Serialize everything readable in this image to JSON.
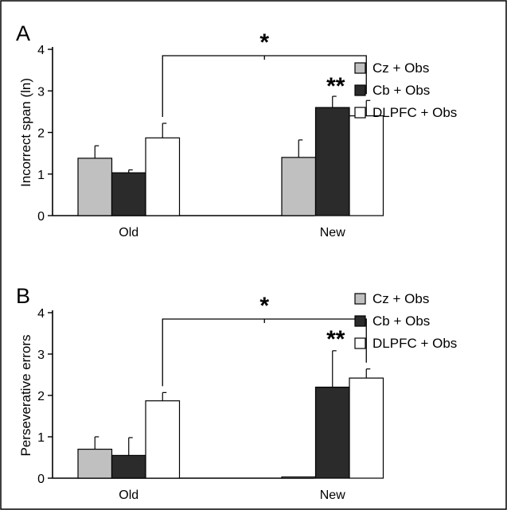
{
  "colors": {
    "Cz + Obs": "#c0c0c0",
    "Cb + Obs": "#2b2b2b",
    "DLPFC + Obs": "#ffffff"
  },
  "chart_data": [
    {
      "type": "bar",
      "panel_label": "A",
      "ylabel": "Incorrect span (ln)",
      "ylim": [
        0,
        4
      ],
      "yticks": [
        "0",
        "1",
        "2",
        "3",
        "4"
      ],
      "categories": [
        "Old",
        "New"
      ],
      "series": [
        {
          "name": "Cz + Obs",
          "values": [
            1.38,
            1.4
          ],
          "errors": [
            0.3,
            0.42
          ]
        },
        {
          "name": "Cb + Obs",
          "values": [
            1.03,
            2.6
          ],
          "errors": [
            0.07,
            0.27
          ]
        },
        {
          "name": "DLPFC + Obs",
          "values": [
            1.87,
            2.4
          ],
          "errors": [
            0.35,
            0.37
          ]
        }
      ],
      "legend_position": "right",
      "annotations": {
        "bracket_star": "*",
        "bar_star": "**"
      }
    },
    {
      "type": "bar",
      "panel_label": "B",
      "ylabel": "Perseverative errors",
      "ylim": [
        0,
        4
      ],
      "yticks": [
        "0",
        "1",
        "2",
        "3",
        "4"
      ],
      "categories": [
        "Old",
        "New"
      ],
      "series": [
        {
          "name": "Cz + Obs",
          "values": [
            0.7,
            0.03
          ],
          "errors": [
            0.3,
            0.0
          ]
        },
        {
          "name": "Cb + Obs",
          "values": [
            0.55,
            2.2
          ],
          "errors": [
            0.43,
            0.88
          ]
        },
        {
          "name": "DLPFC + Obs",
          "values": [
            1.87,
            2.42
          ],
          "errors": [
            0.2,
            0.22
          ]
        }
      ],
      "legend_position": "right",
      "annotations": {
        "bracket_star": "*",
        "bar_star": "**"
      }
    }
  ]
}
